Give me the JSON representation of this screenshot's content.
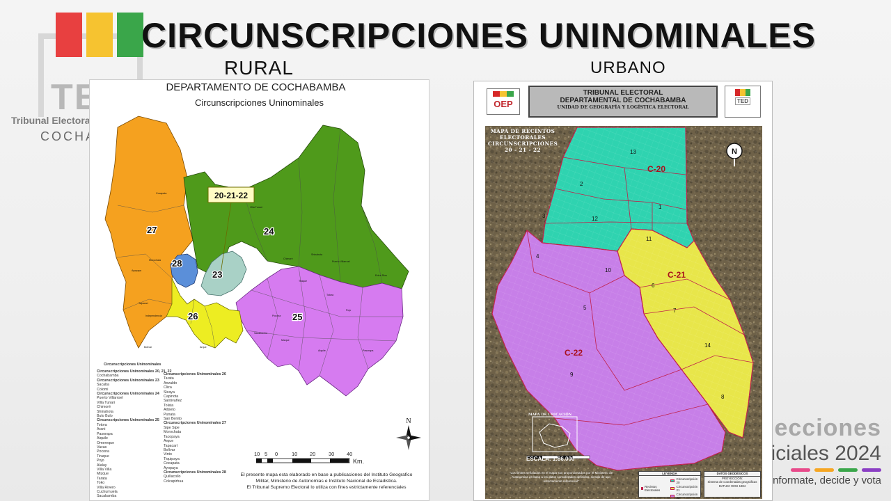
{
  "slide": {
    "title": "CIRCUNSCRIPCIONES UNINOMINALES",
    "subtitle_rural": "RURAL",
    "subtitle_urbano": "URBANO"
  },
  "background": {
    "logo_text": "TED",
    "org_name": "Tribunal Electoral",
    "city": "COCHABAMBA",
    "brand_line1": "Elecciones",
    "brand_line2": "Judiciales 2024",
    "brand_line3": "Informate, decide y vota"
  },
  "rural_map": {
    "heading": "DEPARTAMENTO DE COCHABAMBA",
    "subheading": "Circunscripciones Uninominales",
    "callout": "20-21-22",
    "region_labels": [
      "27",
      "24",
      "28",
      "23",
      "26",
      "25"
    ],
    "place_names": [
      "Cocapata",
      "Villa Tunari",
      "Chimoré",
      "Shinahota",
      "Puerto Villarroel",
      "Entre Ríos",
      "Tiraque",
      "Pojo",
      "Totora",
      "Pocona",
      "Aiquile",
      "Pasorapa",
      "Mizque",
      "Ayopaya",
      "Morochata",
      "Tapacarí",
      "Bolívar",
      "Arque",
      "Sacabamba",
      "Independencia"
    ],
    "legend_heading": "Circunscripciones Uninominales",
    "legend_col1": [
      {
        "hd": true,
        "t": "Circunscripciones Uninominales 20, 21, 22"
      },
      {
        "t": "Cochabamba"
      },
      {
        "hd": true,
        "t": "Circunscripciones Uninominales 23"
      },
      {
        "t": "Sacaba"
      },
      {
        "t": "Colomi"
      },
      {
        "hd": true,
        "t": "Circunscripciones Uninominales 24"
      },
      {
        "t": "Puerto Villarroel"
      },
      {
        "t": "Villa Tunari"
      },
      {
        "t": "Chimoré"
      },
      {
        "t": "Shinahota"
      },
      {
        "t": "Bulo Bulo"
      },
      {
        "hd": true,
        "t": "Circunscripciones Uninominales 25"
      },
      {
        "t": "Totora"
      },
      {
        "t": "Arani"
      },
      {
        "t": "Pasorapa"
      },
      {
        "t": "Aiquile"
      },
      {
        "t": "Omereque"
      },
      {
        "t": "Vacas"
      },
      {
        "t": "Pocona"
      },
      {
        "t": "Tiraque"
      },
      {
        "t": "Pojo"
      },
      {
        "t": "Alalay"
      },
      {
        "t": "Villa Villa"
      },
      {
        "t": "Mizque"
      },
      {
        "t": "Tarata"
      },
      {
        "t": "Toko"
      },
      {
        "t": "Villa Rivero"
      },
      {
        "t": "Cuchumuela"
      },
      {
        "t": "Sacabamba"
      }
    ],
    "legend_col2": [
      {
        "hd": true,
        "t": "Circunscripciones Uninominales 26"
      },
      {
        "t": "Tarata"
      },
      {
        "t": "Anzaldo"
      },
      {
        "t": "Cliza"
      },
      {
        "t": "Sicaya"
      },
      {
        "t": "Capinota"
      },
      {
        "t": "Santivañez"
      },
      {
        "t": "Tolata"
      },
      {
        "t": "Arbieto"
      },
      {
        "t": "Punata"
      },
      {
        "t": "San Benito"
      },
      {
        "hd": true,
        "t": "Circunscripciones Uninominales 27"
      },
      {
        "t": "Sipe Sipe"
      },
      {
        "t": "Morochata"
      },
      {
        "t": "Tacopaya"
      },
      {
        "t": "Arque"
      },
      {
        "t": "Tapacarí"
      },
      {
        "t": "Bolívar"
      },
      {
        "t": "Vinto"
      },
      {
        "t": "Tiquipaya"
      },
      {
        "t": "Cocapata"
      },
      {
        "t": "Ayopaya"
      },
      {
        "hd": true,
        "t": "Circunscripciones Uninominales 28"
      },
      {
        "t": "Quillacollo"
      },
      {
        "t": "Colcapirhua"
      }
    ],
    "scale_numbers": [
      "10",
      "5",
      "0",
      "10",
      "20",
      "30",
      "40"
    ],
    "scale_unit": "Km.",
    "north": "N",
    "note_line1": "El presente mapa esta elaborado en base a publicaciones del Instituto Geografico",
    "note_line2": "Militar, Ministerio de Autonomias e Instituto Nacional de Estadistica.",
    "note_line3": "El Tribunal Supremo Electoral lo utiliza con fines estrictamente referenciales"
  },
  "urban_map": {
    "oep": "OEP",
    "header_line1": "TRIBUNAL ELECTORAL",
    "header_line2": "DEPARTAMENTAL DE COCHABAMBA",
    "header_line3": "UNIDAD DE GEOGRAFÍA Y LOGÍSTICA ELECTORAL",
    "ted": "TED",
    "overlay_line1": "MAPA DE RECINTOS",
    "overlay_line2": "ELECTORALES",
    "overlay_line3": "CIRCUNSCRIPCIONES",
    "overlay_line4": "20 - 21 - 22",
    "circ_labels": [
      "C-20",
      "C-21",
      "C-22"
    ],
    "district_numbers": [
      "13",
      "2",
      "3",
      "12",
      "1",
      "11",
      "4",
      "10",
      "6",
      "7",
      "5",
      "14",
      "9",
      "8"
    ],
    "location_title": "MAPA DE UBICACIÓN",
    "scale": "ESCALA: 1:86.000",
    "note": "\"Los limites señalados en el mapa son proporcionados por el Ministerio de Autonomias en base a los datos considerados definidos, siendo de uso estrictamente referencial\"",
    "legend_title": "LEYENDA",
    "legend_items": [
      "Recintos Electorales",
      "Circunscripción 20",
      "Circunscripción 21",
      "Circunscripción 22"
    ],
    "datos_title": "DATOS GEODÉSICOS",
    "datos_lines": [
      "PROYECCIÓN:",
      "Sistema de coordenadas geográficas",
      "DATUM: WGS 1984"
    ]
  },
  "colors": {
    "orange": "#f5a11f",
    "green": "#4f9a1b",
    "violet": "#d67bf0",
    "yellow": "#eded22",
    "teal": "#a9d1c6",
    "blue": "#5b8fd9",
    "urb_teal": "#2fd3b0",
    "urb_yellow": "#e8e64a",
    "urb_violet": "#c77fe8"
  }
}
